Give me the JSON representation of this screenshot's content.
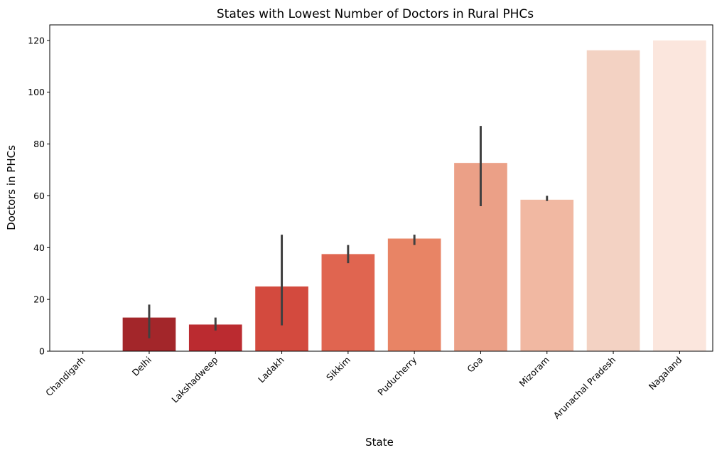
{
  "chart_data": {
    "type": "bar",
    "title": "States with Lowest Number of Doctors in Rural PHCs",
    "xlabel": "State",
    "ylabel": "Doctors in PHCs",
    "ylim": [
      0,
      126
    ],
    "yticks": [
      0,
      20,
      40,
      60,
      80,
      100,
      120
    ],
    "grid": false,
    "categories": [
      "Chandigarh",
      "Delhi",
      "Lakshadweep",
      "Ladakh",
      "Sikkim",
      "Puducherry",
      "Goa",
      "Mizoram",
      "Arunachal Pradesh",
      "Nagaland"
    ],
    "values": [
      0,
      13,
      10.3,
      25,
      37.5,
      43.5,
      72.7,
      58.5,
      116.2,
      120
    ],
    "error_low": [
      0,
      5,
      8,
      10,
      34,
      41,
      56,
      58,
      116.2,
      120
    ],
    "error_high": [
      0,
      18,
      13,
      45,
      41,
      45,
      87,
      60,
      116.2,
      120
    ],
    "colors": [
      "#67000d",
      "#a3262a",
      "#bb2b30",
      "#d34a3e",
      "#e06550",
      "#e88465",
      "#eba087",
      "#f1b8a2",
      "#f3d2c3",
      "#fbe6dd"
    ]
  }
}
